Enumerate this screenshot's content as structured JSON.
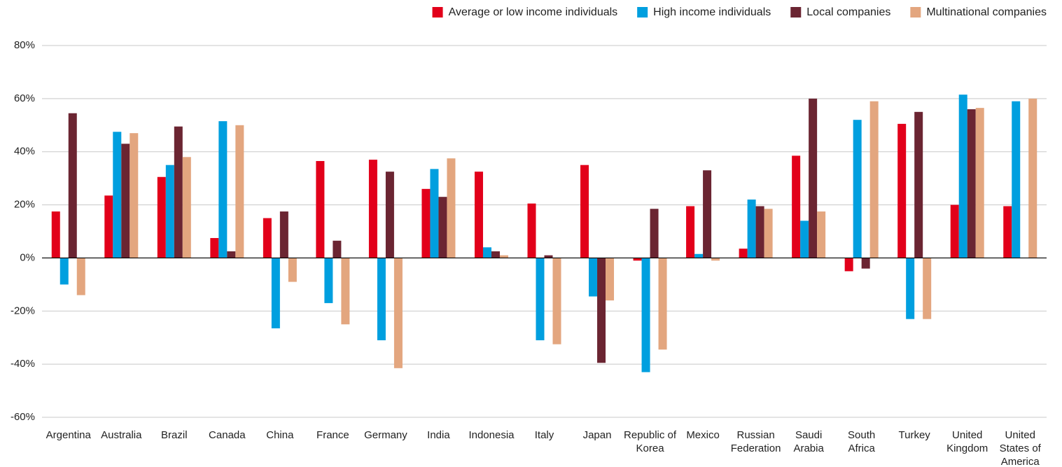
{
  "chart_data": {
    "type": "bar",
    "categories": [
      "Argentina",
      "Australia",
      "Brazil",
      "Canada",
      "China",
      "France",
      "Germany",
      "India",
      "Indonesia",
      "Italy",
      "Japan",
      "Republic of Korea",
      "Mexico",
      "Russian Federation",
      "Saudi Arabia",
      "South Africa",
      "Turkey",
      "United Kingdom",
      "United States of America"
    ],
    "series": [
      {
        "name": "Average or low income individuals",
        "color": "#e2001a",
        "values": [
          17.5,
          23.5,
          30.5,
          7.5,
          15,
          36.5,
          37,
          26,
          32.5,
          20.5,
          35,
          -1,
          19.5,
          3.5,
          38.5,
          -5,
          50.5,
          20,
          19.5
        ]
      },
      {
        "name": "High income individuals",
        "color": "#009fdf",
        "values": [
          -10,
          47.5,
          35,
          51.5,
          -26.5,
          -17,
          -31,
          33.5,
          4,
          -31,
          -14.5,
          -43,
          1.5,
          22,
          14,
          52,
          -23,
          61.5,
          59
        ]
      },
      {
        "name": "Local companies",
        "color": "#6b2532",
        "values": [
          54.5,
          43,
          49.5,
          2.5,
          17.5,
          6.5,
          32.5,
          23,
          2.5,
          1,
          -39.5,
          18.5,
          33,
          19.5,
          60,
          -4,
          55,
          56,
          null
        ]
      },
      {
        "name": "Multinational companies",
        "color": "#e3a67f",
        "values": [
          -14,
          47,
          38,
          50,
          -9,
          -25,
          -41.5,
          37.5,
          1,
          -32.5,
          -16,
          -34.5,
          -1,
          18.5,
          17.5,
          59,
          -23,
          56.5,
          60
        ]
      }
    ],
    "ylim": [
      -60,
      80
    ],
    "yticks": [
      {
        "value": -60,
        "label": "-60%"
      },
      {
        "value": -40,
        "label": "-40%"
      },
      {
        "value": -20,
        "label": "-20%"
      },
      {
        "value": 0,
        "label": "0%"
      },
      {
        "value": 20,
        "label": "20%"
      },
      {
        "value": 40,
        "label": "40%"
      },
      {
        "value": 60,
        "label": "60%"
      },
      {
        "value": 80,
        "label": "80%"
      }
    ],
    "grid": true,
    "legend": "top-right"
  }
}
